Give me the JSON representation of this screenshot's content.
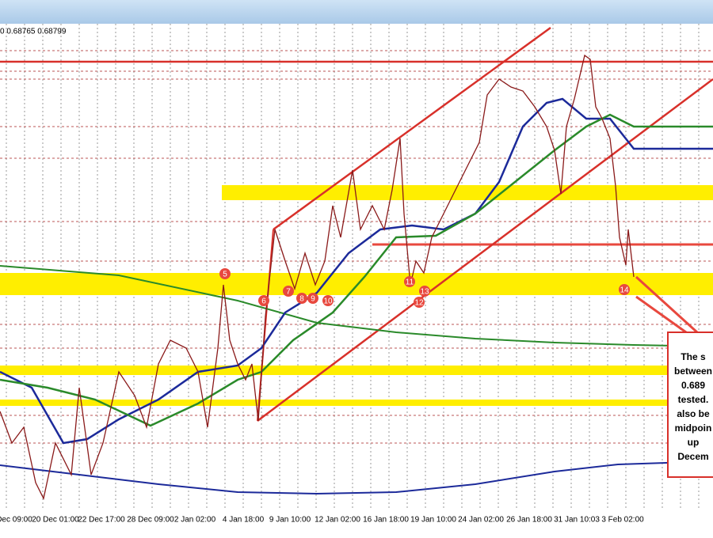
{
  "header": {
    "quote": "0 0.68765 0.68799"
  },
  "x_axis": {
    "labels": [
      "Dec 09:00",
      "20 Dec 01:00",
      "22 Dec 17:00",
      "28 Dec 09:00",
      "2 Jan 02:00",
      "4 Jan 18:00",
      "9 Jan 10:00",
      "12 Jan 02:00",
      "16 Jan 18:00",
      "19 Jan 10:00",
      "24 Jan 02:00",
      "26 Jan 18:00",
      "31 Jan 10:03",
      "3 Feb 02:00"
    ]
  },
  "markers": [
    "5",
    "6",
    "7",
    "8",
    "9",
    "10",
    "11",
    "12",
    "13",
    "14"
  ],
  "callout": {
    "lines": [
      "The s",
      "between",
      "0.689",
      "tested.",
      "also be",
      "midpoin",
      "up",
      "Decem"
    ]
  }
}
